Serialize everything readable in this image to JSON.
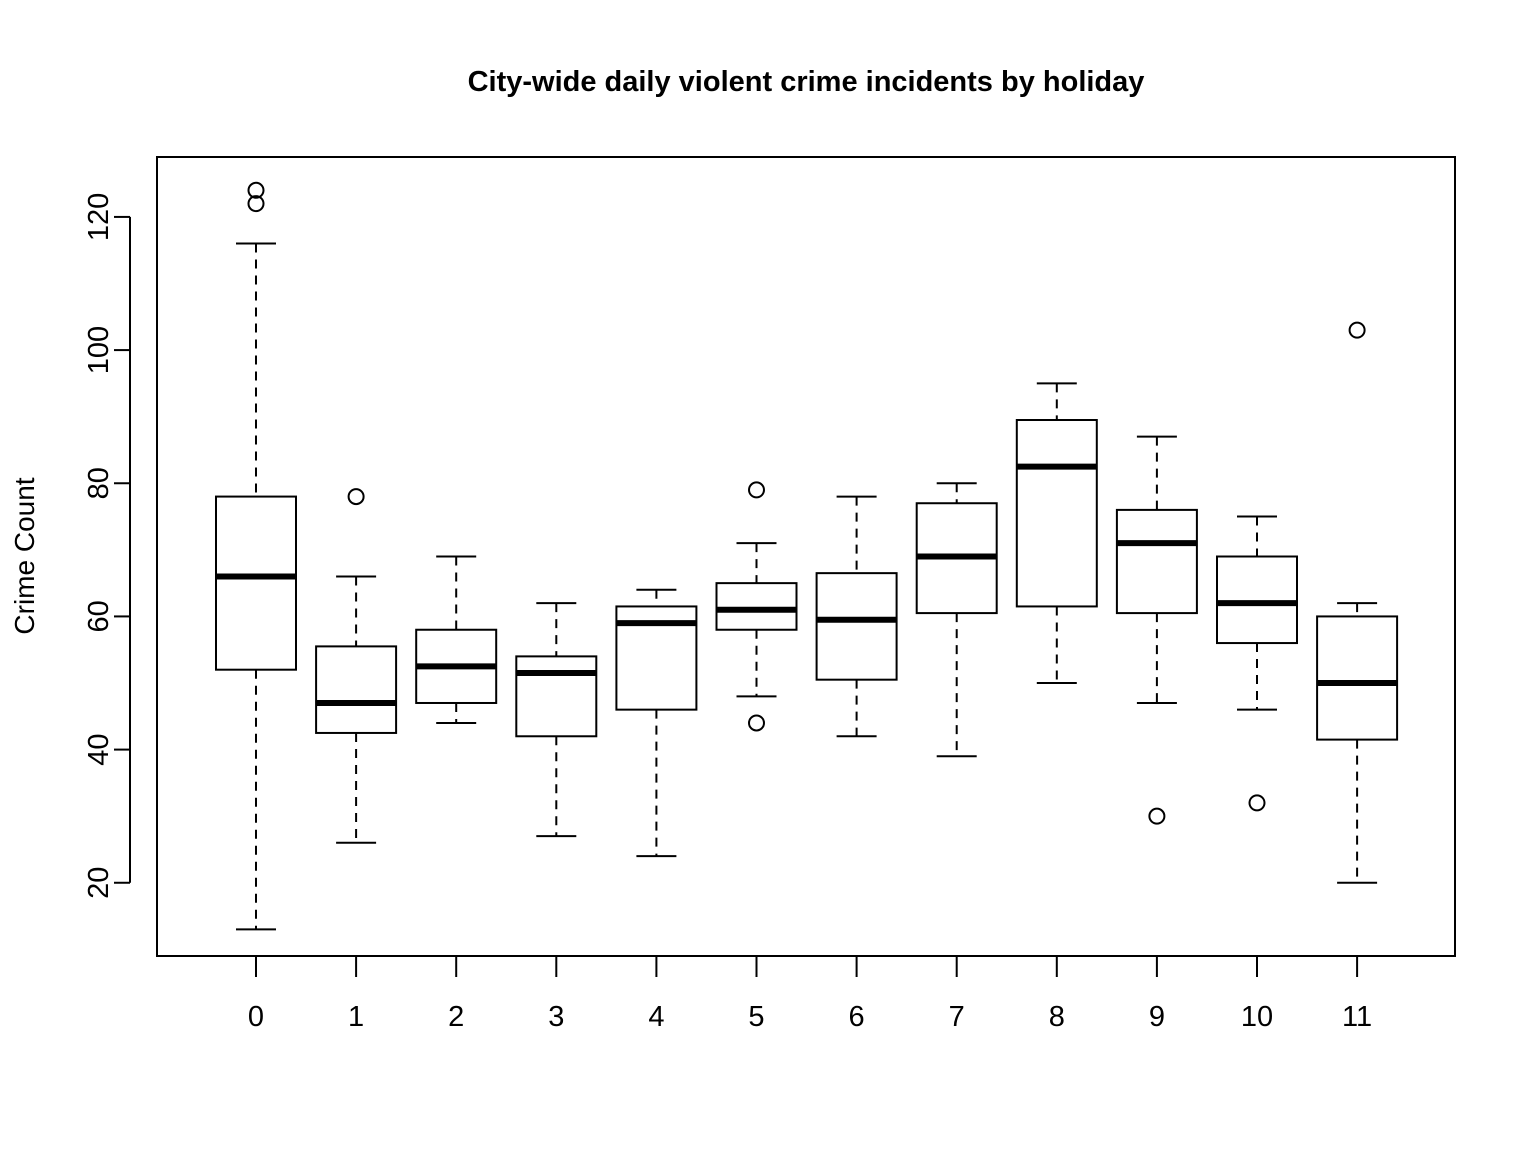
{
  "chart_data": {
    "type": "boxplot",
    "title": "City-wide daily violent crime incidents by holiday",
    "xlabel": "",
    "ylabel": "Crime Count",
    "categories": [
      "0",
      "1",
      "2",
      "3",
      "4",
      "5",
      "6",
      "7",
      "8",
      "9",
      "10",
      "11"
    ],
    "ylim": [
      9,
      129
    ],
    "yticks": [
      20,
      40,
      60,
      80,
      100,
      120
    ],
    "grid": false,
    "legend": "none",
    "boxes": [
      {
        "category": "0",
        "whisker_low": 13,
        "q1": 52,
        "median": 66,
        "q3": 78,
        "whisker_high": 116,
        "outliers": [
          122,
          124
        ]
      },
      {
        "category": "1",
        "whisker_low": 26,
        "q1": 42.5,
        "median": 47,
        "q3": 55.5,
        "whisker_high": 66,
        "outliers": [
          78
        ]
      },
      {
        "category": "2",
        "whisker_low": 44,
        "q1": 47,
        "median": 52.5,
        "q3": 58,
        "whisker_high": 69,
        "outliers": []
      },
      {
        "category": "3",
        "whisker_low": 27,
        "q1": 42,
        "median": 51.5,
        "q3": 54,
        "whisker_high": 62,
        "outliers": []
      },
      {
        "category": "4",
        "whisker_low": 24,
        "q1": 46,
        "median": 59,
        "q3": 61.5,
        "whisker_high": 64,
        "outliers": []
      },
      {
        "category": "5",
        "whisker_low": 48,
        "q1": 58,
        "median": 61,
        "q3": 65,
        "whisker_high": 71,
        "outliers": [
          79,
          44
        ]
      },
      {
        "category": "6",
        "whisker_low": 42,
        "q1": 50.5,
        "median": 59.5,
        "q3": 66.5,
        "whisker_high": 78,
        "outliers": []
      },
      {
        "category": "7",
        "whisker_low": 39,
        "q1": 60.5,
        "median": 69,
        "q3": 77,
        "whisker_high": 80,
        "outliers": []
      },
      {
        "category": "8",
        "whisker_low": 50,
        "q1": 61.5,
        "median": 82.5,
        "q3": 89.5,
        "whisker_high": 95,
        "outliers": []
      },
      {
        "category": "9",
        "whisker_low": 47,
        "q1": 60.5,
        "median": 71,
        "q3": 76,
        "whisker_high": 87,
        "outliers": [
          30
        ]
      },
      {
        "category": "10",
        "whisker_low": 46,
        "q1": 56,
        "median": 62,
        "q3": 69,
        "whisker_high": 75,
        "outliers": [
          32
        ]
      },
      {
        "category": "11",
        "whisker_low": 20,
        "q1": 41.5,
        "median": 50,
        "q3": 60,
        "whisker_high": 62,
        "outliers": [
          103
        ]
      }
    ],
    "colors": {
      "box_fill": "#ffffff",
      "stroke": "#000000"
    }
  }
}
